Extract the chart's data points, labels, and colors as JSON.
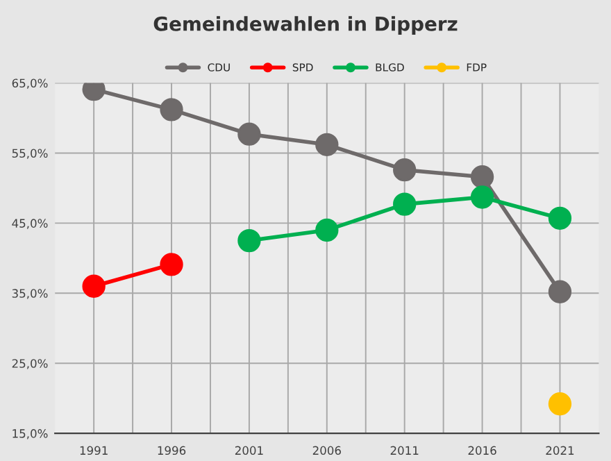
{
  "chart_data": {
    "type": "line",
    "title": "Gemeindewahlen in Dipperz",
    "categories": [
      "1991",
      "1996",
      "2001",
      "2006",
      "2011",
      "2016",
      "2021"
    ],
    "series": [
      {
        "name": "CDU",
        "color": "#6e6a6a",
        "values": [
          64.1,
          61.2,
          57.7,
          56.2,
          52.6,
          51.6,
          35.2
        ]
      },
      {
        "name": "SPD",
        "color": "#ff0000",
        "values": [
          36.0,
          39.1,
          null,
          null,
          null,
          null,
          null
        ]
      },
      {
        "name": "BLGD",
        "color": "#00b050",
        "values": [
          null,
          null,
          42.5,
          44.0,
          47.7,
          48.7,
          45.7
        ]
      },
      {
        "name": "FDP",
        "color": "#ffc000",
        "values": [
          null,
          null,
          null,
          null,
          null,
          null,
          19.2
        ]
      }
    ],
    "ylim": [
      15,
      65
    ],
    "yticks": [
      {
        "value": 15,
        "label": "15,0%"
      },
      {
        "value": 25,
        "label": "25,0%"
      },
      {
        "value": 35,
        "label": "35,0%"
      },
      {
        "value": 45,
        "label": "45,0%"
      },
      {
        "value": 55,
        "label": "55,0%"
      },
      {
        "value": 65,
        "label": "65,0%"
      }
    ],
    "grid": true,
    "legend": "top",
    "marker": "circle",
    "line_style": "solid"
  }
}
